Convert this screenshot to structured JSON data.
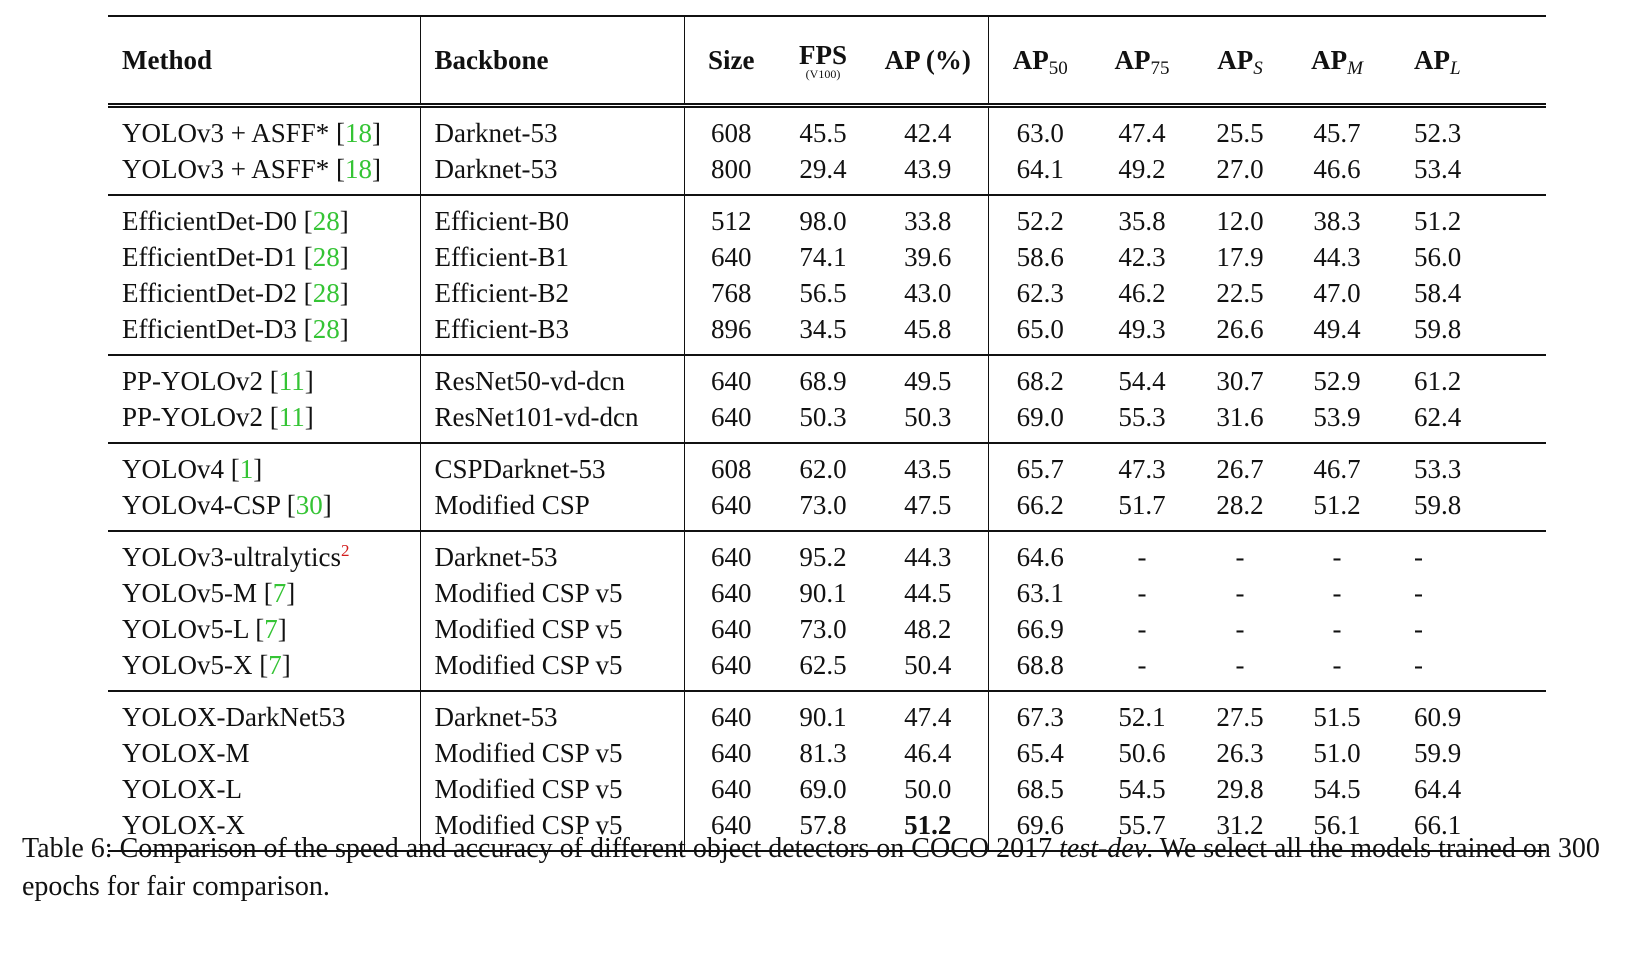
{
  "headers": {
    "method": "Method",
    "backbone": "Backbone",
    "size": "Size",
    "fps": "FPS",
    "fps_sub": "(V100)",
    "ap": "AP (%)",
    "ap_base": "AP",
    "ap50_sub": "50",
    "ap75_sub": "75",
    "aps_sub": "S",
    "apm_sub": "M",
    "apl_sub": "L"
  },
  "groups": [
    {
      "rows": [
        {
          "method": "YOLOv3 + ASFF* [",
          "cite": "18",
          "close": "]",
          "backbone": "Darknet-53",
          "size": "608",
          "fps": "45.5",
          "ap": "42.4",
          "ap50": "63.0",
          "ap75": "47.4",
          "aps": "25.5",
          "apm": "45.7",
          "apl": "52.3"
        },
        {
          "method": "YOLOv3 + ASFF* [",
          "cite": "18",
          "close": "]",
          "backbone": "Darknet-53",
          "size": "800",
          "fps": "29.4",
          "ap": "43.9",
          "ap50": "64.1",
          "ap75": "49.2",
          "aps": "27.0",
          "apm": "46.6",
          "apl": "53.4"
        }
      ]
    },
    {
      "rows": [
        {
          "method": "EfficientDet-D0 [",
          "cite": "28",
          "close": "]",
          "backbone": "Efficient-B0",
          "size": "512",
          "fps": "98.0",
          "ap": "33.8",
          "ap50": "52.2",
          "ap75": "35.8",
          "aps": "12.0",
          "apm": "38.3",
          "apl": "51.2"
        },
        {
          "method": "EfficientDet-D1 [",
          "cite": "28",
          "close": "]",
          "backbone": "Efficient-B1",
          "size": "640",
          "fps": "74.1",
          "ap": "39.6",
          "ap50": "58.6",
          "ap75": "42.3",
          "aps": "17.9",
          "apm": "44.3",
          "apl": "56.0"
        },
        {
          "method": "EfficientDet-D2 [",
          "cite": "28",
          "close": "]",
          "backbone": "Efficient-B2",
          "size": "768",
          "fps": "56.5",
          "ap": "43.0",
          "ap50": "62.3",
          "ap75": "46.2",
          "aps": "22.5",
          "apm": "47.0",
          "apl": "58.4"
        },
        {
          "method": "EfficientDet-D3 [",
          "cite": "28",
          "close": "]",
          "backbone": "Efficient-B3",
          "size": "896",
          "fps": "34.5",
          "ap": "45.8",
          "ap50": "65.0",
          "ap75": "49.3",
          "aps": "26.6",
          "apm": "49.4",
          "apl": "59.8"
        }
      ]
    },
    {
      "rows": [
        {
          "method": "PP-YOLOv2 [",
          "cite": "11",
          "close": "]",
          "backbone": "ResNet50-vd-dcn",
          "size": "640",
          "fps": "68.9",
          "ap": "49.5",
          "ap50": "68.2",
          "ap75": "54.4",
          "aps": "30.7",
          "apm": "52.9",
          "apl": "61.2"
        },
        {
          "method": "PP-YOLOv2 [",
          "cite": "11",
          "close": "]",
          "backbone": "ResNet101-vd-dcn",
          "size": "640",
          "fps": "50.3",
          "ap": "50.3",
          "ap50": "69.0",
          "ap75": "55.3",
          "aps": "31.6",
          "apm": "53.9",
          "apl": "62.4"
        }
      ]
    },
    {
      "rows": [
        {
          "method": "YOLOv4 [",
          "cite": "1",
          "close": "]",
          "backbone": "CSPDarknet-53",
          "size": "608",
          "fps": "62.0",
          "ap": "43.5",
          "ap50": "65.7",
          "ap75": "47.3",
          "aps": "26.7",
          "apm": "46.7",
          "apl": "53.3"
        },
        {
          "method": "YOLOv4-CSP [",
          "cite": "30",
          "close": "]",
          "backbone": "Modified CSP",
          "size": "640",
          "fps": "73.0",
          "ap": "47.5",
          "ap50": "66.2",
          "ap75": "51.7",
          "aps": "28.2",
          "apm": "51.2",
          "apl": "59.8"
        }
      ]
    },
    {
      "rows": [
        {
          "method": "YOLOv3-ultralytics",
          "sup": "2",
          "backbone": "Darknet-53",
          "size": "640",
          "fps": "95.2",
          "ap": "44.3",
          "ap50": "64.6",
          "ap75": "-",
          "aps": "-",
          "apm": "-",
          "apl": "-"
        },
        {
          "method": "YOLOv5-M [",
          "cite": "7",
          "close": "]",
          "backbone": "Modified CSP v5",
          "size": "640",
          "fps": "90.1",
          "ap": "44.5",
          "ap50": "63.1",
          "ap75": "-",
          "aps": "-",
          "apm": "-",
          "apl": "-"
        },
        {
          "method": "YOLOv5-L [",
          "cite": "7",
          "close": "]",
          "backbone": "Modified CSP v5",
          "size": "640",
          "fps": "73.0",
          "ap": "48.2",
          "ap50": "66.9",
          "ap75": "-",
          "aps": "-",
          "apm": "-",
          "apl": "-"
        },
        {
          "method": "YOLOv5-X [",
          "cite": "7",
          "close": "]",
          "backbone": "Modified CSP v5",
          "size": "640",
          "fps": "62.5",
          "ap": "50.4",
          "ap50": "68.8",
          "ap75": "-",
          "aps": "-",
          "apm": "-",
          "apl": "-"
        }
      ]
    },
    {
      "rows": [
        {
          "method": "YOLOX-DarkNet53",
          "backbone": "Darknet-53",
          "size": "640",
          "fps": "90.1",
          "ap": "47.4",
          "ap50": "67.3",
          "ap75": "52.1",
          "aps": "27.5",
          "apm": "51.5",
          "apl": "60.9"
        },
        {
          "method": "YOLOX-M",
          "backbone": "Modified CSP v5",
          "size": "640",
          "fps": "81.3",
          "ap": "46.4",
          "ap50": "65.4",
          "ap75": "50.6",
          "aps": "26.3",
          "apm": "51.0",
          "apl": "59.9"
        },
        {
          "method": "YOLOX-L",
          "backbone": "Modified CSP v5",
          "size": "640",
          "fps": "69.0",
          "ap": "50.0",
          "ap50": "68.5",
          "ap75": "54.5",
          "aps": "29.8",
          "apm": "54.5",
          "apl": "64.4"
        },
        {
          "method": "YOLOX-X",
          "backbone": "Modified CSP v5",
          "size": "640",
          "fps": "57.8",
          "ap": "51.2",
          "ap_bold": true,
          "ap50": "69.6",
          "ap75": "55.7",
          "aps": "31.2",
          "apm": "56.1",
          "apl": "66.1"
        }
      ]
    }
  ],
  "caption": {
    "prefix": "Table 6: Comparison of the speed and accuracy of different object detectors on COCO 2017 ",
    "italic": "test-dev",
    "suffix": ". We select all the models trained on 300 epochs for fair comparison."
  },
  "colors": {
    "cite": "#35c435",
    "footnote": "#d21c1c"
  }
}
